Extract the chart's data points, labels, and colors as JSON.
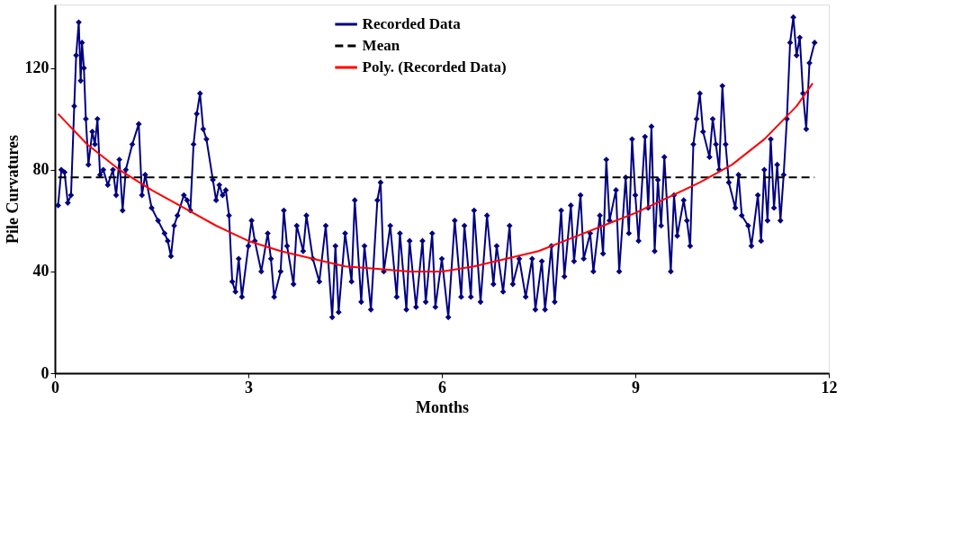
{
  "chart_data": {
    "type": "line",
    "xlabel": "Months",
    "ylabel": "Pile Curvatures",
    "xlim": [
      0,
      12
    ],
    "xticks": [
      0,
      3,
      6,
      9,
      12
    ],
    "ylim": [
      0,
      145
    ],
    "yticks": [
      0,
      40,
      80,
      120
    ],
    "grid": false,
    "legend": "top",
    "series": [
      {
        "name": "Recorded Data",
        "type": "line",
        "color": "#000080",
        "marker": "diamond",
        "line_style": "solid",
        "x": [
          0.05,
          0.1,
          0.15,
          0.2,
          0.25,
          0.3,
          0.33,
          0.37,
          0.4,
          0.42,
          0.45,
          0.48,
          0.52,
          0.58,
          0.62,
          0.66,
          0.7,
          0.75,
          0.82,
          0.9,
          0.95,
          1.0,
          1.05,
          1.1,
          1.2,
          1.3,
          1.35,
          1.4,
          1.5,
          1.6,
          1.7,
          1.75,
          1.8,
          1.85,
          1.9,
          2.0,
          2.05,
          2.1,
          2.15,
          2.2,
          2.25,
          2.3,
          2.35,
          2.45,
          2.5,
          2.55,
          2.6,
          2.65,
          2.7,
          2.75,
          2.8,
          2.85,
          2.9,
          3.0,
          3.05,
          3.1,
          3.2,
          3.3,
          3.35,
          3.4,
          3.5,
          3.55,
          3.6,
          3.7,
          3.75,
          3.85,
          3.9,
          4.0,
          4.1,
          4.2,
          4.3,
          4.35,
          4.4,
          4.5,
          4.6,
          4.65,
          4.75,
          4.8,
          4.9,
          5.0,
          5.05,
          5.1,
          5.2,
          5.3,
          5.35,
          5.45,
          5.5,
          5.6,
          5.7,
          5.75,
          5.85,
          5.9,
          6.0,
          6.1,
          6.2,
          6.3,
          6.35,
          6.45,
          6.5,
          6.6,
          6.7,
          6.8,
          6.85,
          6.95,
          7.05,
          7.1,
          7.2,
          7.3,
          7.4,
          7.45,
          7.55,
          7.6,
          7.7,
          7.75,
          7.85,
          7.9,
          8.0,
          8.05,
          8.15,
          8.2,
          8.3,
          8.35,
          8.45,
          8.5,
          8.55,
          8.6,
          8.7,
          8.75,
          8.85,
          8.9,
          8.95,
          9.0,
          9.05,
          9.15,
          9.2,
          9.25,
          9.3,
          9.35,
          9.4,
          9.45,
          9.55,
          9.6,
          9.65,
          9.75,
          9.8,
          9.85,
          9.9,
          9.95,
          10.0,
          10.05,
          10.15,
          10.2,
          10.25,
          10.3,
          10.35,
          10.4,
          10.45,
          10.55,
          10.6,
          10.65,
          10.75,
          10.8,
          10.9,
          10.95,
          11.0,
          11.05,
          11.1,
          11.15,
          11.2,
          11.25,
          11.3,
          11.35,
          11.4,
          11.45,
          11.5,
          11.55,
          11.6,
          11.65,
          11.7,
          11.78
        ],
        "values": [
          66,
          80,
          79,
          67,
          70,
          105,
          125,
          138,
          115,
          130,
          120,
          100,
          82,
          95,
          90,
          100,
          78,
          80,
          74,
          80,
          70,
          84,
          64,
          80,
          90,
          98,
          70,
          78,
          65,
          60,
          55,
          52,
          46,
          58,
          62,
          70,
          68,
          64,
          90,
          102,
          110,
          96,
          92,
          76,
          68,
          74,
          70,
          72,
          62,
          36,
          32,
          45,
          30,
          50,
          60,
          52,
          40,
          55,
          45,
          30,
          40,
          64,
          50,
          35,
          58,
          48,
          62,
          45,
          36,
          58,
          22,
          50,
          24,
          55,
          36,
          68,
          28,
          50,
          25,
          68,
          75,
          40,
          58,
          30,
          55,
          25,
          52,
          26,
          52,
          28,
          55,
          26,
          45,
          22,
          60,
          30,
          58,
          30,
          64,
          28,
          62,
          35,
          50,
          32,
          58,
          35,
          45,
          30,
          45,
          25,
          44,
          25,
          50,
          28,
          64,
          38,
          66,
          44,
          70,
          45,
          55,
          40,
          62,
          47,
          84,
          60,
          72,
          40,
          77,
          55,
          92,
          70,
          52,
          93,
          65,
          97,
          48,
          76,
          58,
          85,
          40,
          70,
          54,
          68,
          60,
          50,
          90,
          100,
          110,
          95,
          85,
          100,
          90,
          80,
          113,
          90,
          75,
          65,
          78,
          62,
          58,
          50,
          70,
          52,
          80,
          60,
          92,
          65,
          82,
          60,
          78,
          100,
          130,
          140,
          125,
          132,
          110,
          96,
          122,
          130
        ]
      },
      {
        "name": "Mean",
        "type": "line",
        "color": "#000000",
        "marker": "none",
        "line_style": "dashed",
        "x": [
          0.05,
          11.78
        ],
        "values": [
          77,
          77
        ]
      },
      {
        "name": "Poly. (Recorded Data)",
        "type": "line",
        "color": "#ff0000",
        "marker": "none",
        "line_style": "solid",
        "x": [
          0.05,
          0.5,
          1,
          1.5,
          2,
          2.5,
          3,
          3.5,
          4,
          4.5,
          5,
          5.5,
          6,
          6.5,
          7,
          7.5,
          8,
          8.5,
          9,
          9.5,
          10,
          10.5,
          11,
          11.5,
          11.75
        ],
        "values": [
          102,
          90,
          80,
          72,
          65,
          58,
          52,
          48,
          45,
          42,
          41,
          40,
          40,
          42,
          45,
          48,
          53,
          58,
          63,
          69,
          75,
          82,
          92,
          105,
          114
        ]
      }
    ]
  }
}
